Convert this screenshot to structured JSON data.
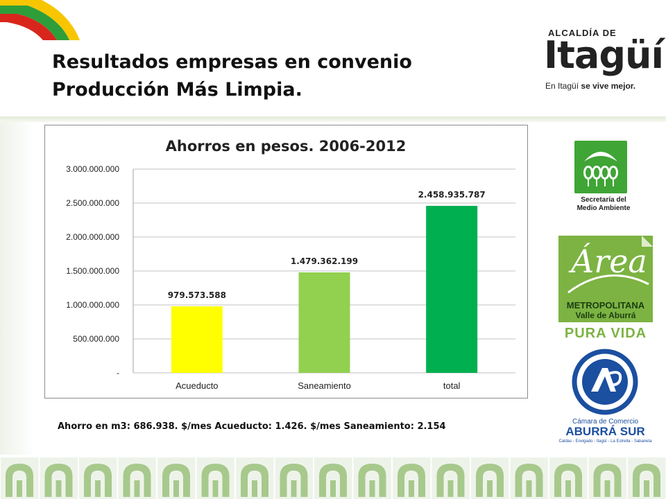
{
  "header": {
    "title_line1": "Resultados empresas en convenio",
    "title_line2": "Producción Más Limpia."
  },
  "logos": {
    "itagui": {
      "top": "ALCALDÍA DE",
      "name": "Itagüí",
      "slogan_prefix": "En Itagüí",
      "slogan_bold": "se vive mejor."
    },
    "secretaria": {
      "line1": "Secretaría del",
      "line2": "Medio Ambiente",
      "icon": "trees-icon"
    },
    "area": {
      "word": "Área",
      "line1": "METROPOLITANA",
      "line2": "Valle de Aburrá",
      "tag": "PURA VIDA"
    },
    "camara": {
      "line1": "Cámara de Comercio",
      "line2": "ABURRÁ SUR",
      "line3": "Caldas - Envigado - Itagüí - La Estrella - Sabaneta"
    }
  },
  "colors": {
    "acueducto": "#ffff00",
    "saneamiento": "#92d050",
    "total": "#00b050",
    "gridline": "#c0c0c0",
    "flag_yellow": "#f7c600",
    "flag_green": "#2e9e3a",
    "flag_red": "#d9261c",
    "area_green": "#7cb342",
    "camara_blue": "#1b4fa0"
  },
  "chart_data": {
    "type": "bar",
    "title": "Ahorros en pesos. 2006-2012",
    "categories": [
      "Acueducto",
      "Saneamiento",
      "total"
    ],
    "values": [
      979573588,
      1479362199,
      2458935787
    ],
    "value_labels": [
      "979.573.588",
      "1.479.362.199",
      "2.458.935.787"
    ],
    "ylim": [
      0,
      3000000000
    ],
    "yticks": [
      0,
      500000000,
      1000000000,
      1500000000,
      2000000000,
      2500000000,
      3000000000
    ],
    "ytick_labels": [
      "-",
      "500.000.000",
      "1.000.000.000",
      "1.500.000.000",
      "2.000.000.000",
      "2.500.000.000",
      "3.000.000.000"
    ],
    "grid": true,
    "legend": "none",
    "xlabel": "",
    "ylabel": ""
  },
  "footnote": "Ahorro en m3: 686.938.  $/mes Acueducto: 1.426. $/mes Saneamiento: 2.154"
}
